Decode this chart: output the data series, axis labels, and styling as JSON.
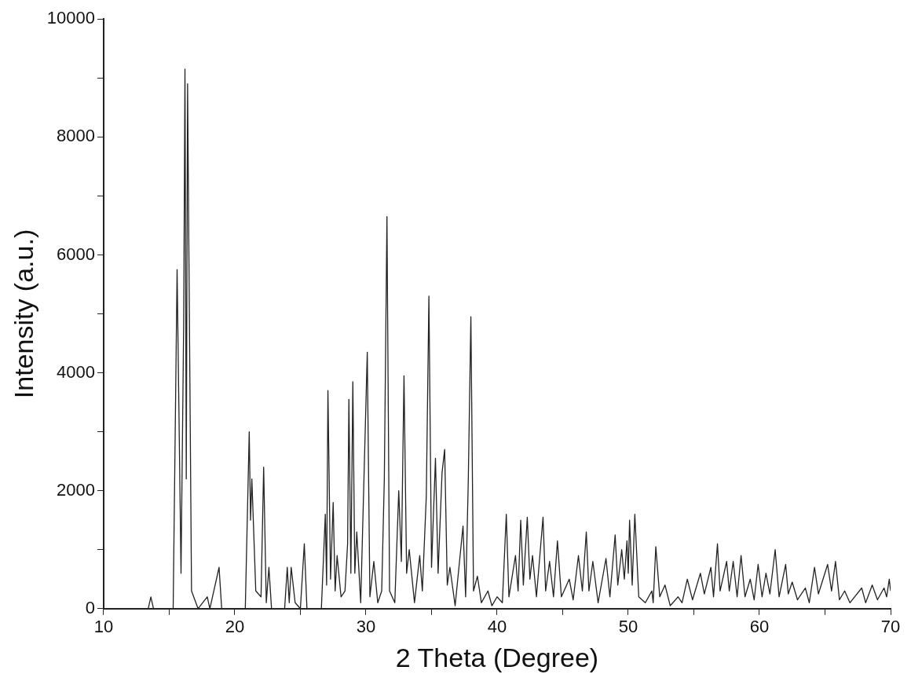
{
  "chart_data": {
    "type": "line",
    "xlabel": "2 Theta (Degree)",
    "ylabel": "Intensity (a.u.)",
    "xlim": [
      10,
      70
    ],
    "ylim": [
      0,
      10000
    ],
    "xticks": [
      10,
      {
        "value": 15,
        "label": null
      },
      20,
      {
        "value": 25,
        "label": null
      },
      30,
      {
        "value": 35,
        "label": null
      },
      40,
      {
        "value": 45,
        "label": null
      },
      50,
      {
        "value": 55,
        "label": null
      },
      60,
      {
        "value": 65,
        "label": null
      },
      70
    ],
    "yticks": [
      0,
      {
        "value": 1000,
        "label": null
      },
      2000,
      {
        "value": 3000,
        "label": null
      },
      4000,
      {
        "value": 5000,
        "label": null
      },
      6000,
      {
        "value": 7000,
        "label": null
      },
      8000,
      {
        "value": 9000,
        "label": null
      },
      10000
    ],
    "grid": false,
    "legend": false,
    "marker": "none",
    "line_style": "solid",
    "series": [
      {
        "color": "#222222",
        "x": [
          10,
          13.4,
          13.6,
          13.8,
          15.3,
          15.6,
          15.9,
          16.1,
          16.2,
          16.3,
          16.4,
          16.7,
          17.2,
          17.9,
          18.1,
          18.8,
          19.0,
          20.8,
          21.1,
          21.2,
          21.3,
          21.6,
          22.0,
          22.2,
          22.4,
          22.6,
          22.8,
          23.8,
          24.0,
          24.15,
          24.3,
          24.6,
          25.0,
          25.3,
          25.5,
          26.6,
          26.9,
          27.0,
          27.1,
          27.3,
          27.5,
          27.65,
          27.8,
          28.1,
          28.4,
          28.6,
          28.7,
          28.85,
          29.0,
          29.15,
          29.3,
          29.6,
          30.1,
          30.3,
          30.6,
          30.9,
          31.2,
          31.4,
          31.6,
          31.8,
          32.2,
          32.5,
          32.7,
          32.9,
          33.1,
          33.3,
          33.7,
          34.1,
          34.3,
          34.6,
          34.8,
          35.0,
          35.3,
          35.5,
          35.8,
          36.0,
          36.2,
          36.4,
          36.8,
          37.4,
          37.6,
          37.8,
          38.0,
          38.2,
          38.5,
          38.8,
          39.3,
          39.6,
          40.0,
          40.4,
          40.7,
          40.9,
          41.4,
          41.6,
          41.8,
          42.0,
          42.3,
          42.5,
          42.7,
          43.0,
          43.5,
          43.7,
          44.0,
          44.3,
          44.6,
          44.9,
          45.5,
          45.8,
          46.2,
          46.5,
          46.8,
          47.0,
          47.3,
          47.7,
          48.3,
          48.6,
          49.0,
          49.2,
          49.5,
          49.7,
          49.9,
          50.0,
          50.1,
          50.3,
          50.5,
          50.8,
          51.3,
          51.8,
          51.9,
          52.1,
          52.4,
          52.8,
          53.2,
          53.8,
          54.1,
          54.5,
          54.9,
          55.5,
          55.8,
          56.3,
          56.5,
          56.8,
          57.0,
          57.5,
          57.7,
          58.0,
          58.3,
          58.6,
          58.9,
          59.3,
          59.6,
          59.9,
          60.2,
          60.5,
          60.8,
          61.2,
          61.5,
          62.0,
          62.2,
          62.5,
          62.9,
          63.5,
          63.8,
          64.2,
          64.5,
          65.2,
          65.5,
          65.8,
          66.1,
          66.5,
          66.9,
          67.8,
          68.1,
          68.6,
          69.0,
          69.5,
          69.7,
          69.9,
          70.0
        ],
        "values": [
          0,
          0,
          200,
          0,
          0,
          5750,
          600,
          4800,
          9150,
          2200,
          8900,
          300,
          0,
          200,
          0,
          700,
          0,
          0,
          3000,
          1500,
          2200,
          300,
          200,
          2400,
          100,
          700,
          0,
          0,
          700,
          100,
          700,
          100,
          0,
          1100,
          0,
          0,
          1600,
          400,
          3700,
          500,
          1800,
          300,
          900,
          200,
          300,
          1100,
          3550,
          600,
          3850,
          600,
          1300,
          100,
          4350,
          200,
          800,
          100,
          300,
          2200,
          6650,
          300,
          100,
          2000,
          800,
          3950,
          600,
          1000,
          100,
          900,
          300,
          1900,
          5300,
          700,
          2550,
          600,
          2300,
          2700,
          400,
          700,
          50,
          1400,
          200,
          2150,
          4950,
          300,
          550,
          100,
          300,
          50,
          200,
          100,
          1600,
          200,
          900,
          300,
          1500,
          400,
          1550,
          500,
          900,
          200,
          1550,
          300,
          800,
          200,
          1150,
          200,
          500,
          150,
          900,
          300,
          1300,
          300,
          800,
          100,
          850,
          200,
          1250,
          400,
          1000,
          500,
          1150,
          600,
          1500,
          400,
          1600,
          200,
          100,
          300,
          100,
          1050,
          200,
          400,
          50,
          200,
          100,
          500,
          150,
          600,
          250,
          700,
          200,
          1100,
          300,
          800,
          300,
          800,
          200,
          900,
          200,
          500,
          150,
          750,
          200,
          600,
          250,
          1000,
          200,
          750,
          250,
          450,
          150,
          350,
          100,
          700,
          250,
          750,
          300,
          800,
          150,
          300,
          100,
          350,
          100,
          400,
          150,
          350,
          200,
          500,
          300
        ]
      }
    ]
  }
}
